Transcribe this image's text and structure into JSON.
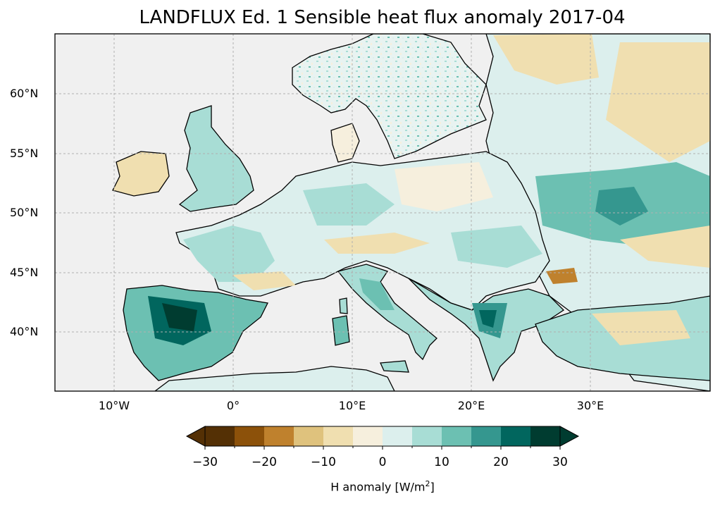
{
  "title": "LANDFLUX Ed. 1 Sensible heat flux anomaly 2017-04",
  "lat_labels": [
    "60°N",
    "55°N",
    "50°N",
    "45°N",
    "40°N"
  ],
  "lon_labels": [
    "10°W",
    "0°",
    "10°E",
    "20°E",
    "30°E"
  ],
  "colorbar": {
    "label_prefix": "H anomaly [W/m",
    "label_sup": "2",
    "label_suffix": "]",
    "ticks": [
      "−30",
      "−20",
      "−10",
      "0",
      "10",
      "20",
      "30"
    ],
    "levels": [
      -30,
      -25,
      -20,
      -15,
      -10,
      -5,
      0,
      5,
      10,
      15,
      20,
      25,
      30
    ],
    "colors": [
      "#543005",
      "#8c510a",
      "#bf812d",
      "#dfc27d",
      "#f0dfb0",
      "#f6efdd",
      "#dcefed",
      "#a8ddd5",
      "#6cc0b2",
      "#35978f",
      "#01665e",
      "#003c30"
    ],
    "extend": "both"
  },
  "map": {
    "extent_lon": [
      -15,
      40
    ],
    "extent_lat": [
      35,
      65
    ],
    "ocean_color": "#f0f0f0",
    "gridlines": true
  }
}
